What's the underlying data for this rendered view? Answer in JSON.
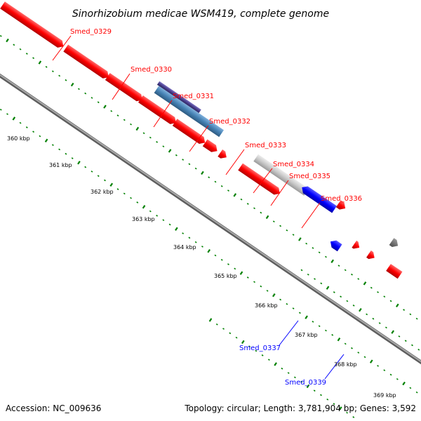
{
  "title": "Sinorhizobium medicae WSM419, complete genome",
  "footer": {
    "accession": "Accession: NC_009636",
    "topology": "Topology: circular; Length: 3,781,904 bp; Genes: 3,592"
  },
  "colors": {
    "forward_gene": "#ff0000",
    "reverse_gene": "#0000ff",
    "other_gene_light_blue": "#4682b4",
    "other_gene_dark": "#483d8b",
    "other_gene_gray": "#c0c0c0",
    "backbone": "#808080",
    "tick": "#008000"
  },
  "kbp_labels": [
    {
      "text": "360 kbp"
    },
    {
      "text": "361 kbp"
    },
    {
      "text": "362 kbp"
    },
    {
      "text": "363 kbp"
    },
    {
      "text": "364 kbp"
    },
    {
      "text": "365 kbp"
    },
    {
      "text": "366 kbp"
    },
    {
      "text": "367 kbp"
    },
    {
      "text": "368 kbp"
    },
    {
      "text": "369 kbp"
    }
  ],
  "gene_labels": [
    {
      "text": "Smed_0329",
      "strand": "forward"
    },
    {
      "text": "Smed_0330",
      "strand": "forward"
    },
    {
      "text": "Smed_0331",
      "strand": "forward"
    },
    {
      "text": "Smed_0332",
      "strand": "forward"
    },
    {
      "text": "Smed_0333",
      "strand": "forward"
    },
    {
      "text": "Smed_0334",
      "strand": "forward"
    },
    {
      "text": "Smed_0335",
      "strand": "forward"
    },
    {
      "text": "Smed_0336",
      "strand": "forward"
    },
    {
      "text": "Smed_0337",
      "strand": "reverse"
    },
    {
      "text": "Smed_0339",
      "strand": "reverse"
    }
  ]
}
